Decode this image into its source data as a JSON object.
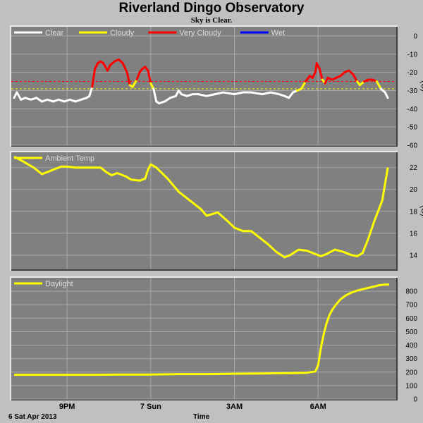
{
  "title": "Riverland Dingo Observatory",
  "subtitle": "Sky is Clear.",
  "date_label": "6 Sat Apr 2013",
  "xlabel": "Time",
  "colors": {
    "background": "#c0c0c0",
    "plot": "#808080",
    "grid": "#a8a8a8",
    "clear": "#ffffff",
    "cloudy": "#ffff00",
    "very_cloudy": "#ff0000",
    "wet": "#0000ff",
    "threshold_red": "#ff0000",
    "threshold_yellow": "#ffff00"
  },
  "chart_data": [
    {
      "type": "line",
      "title": "",
      "ylabel": "(C)",
      "ylim": [
        -60,
        5
      ],
      "yticks": [
        0,
        -10,
        -20,
        -30,
        -40,
        -50,
        -60
      ],
      "xlim": [
        19.0,
        32.8
      ],
      "xticks": [
        {
          "x": 21,
          "label": "9PM"
        },
        {
          "x": 24,
          "label": "7 Sun"
        },
        {
          "x": 27,
          "label": "3AM"
        },
        {
          "x": 30,
          "label": "6AM"
        }
      ],
      "legend": [
        "Clear",
        "Cloudy",
        "Very Cloudy",
        "Wet"
      ],
      "thresholds": [
        {
          "y": -25,
          "color": "very_cloudy"
        },
        {
          "y": -29,
          "color": "cloudy"
        }
      ],
      "series": [
        {
          "name": "Sky Temperature",
          "x": [
            19.1,
            19.2,
            19.35,
            19.5,
            19.7,
            19.9,
            20.1,
            20.3,
            20.5,
            20.7,
            20.9,
            21.1,
            21.3,
            21.5,
            21.7,
            21.8,
            21.9,
            22.0,
            22.1,
            22.2,
            22.3,
            22.45,
            22.55,
            22.7,
            22.85,
            23.0,
            23.15,
            23.25,
            23.35,
            23.5,
            23.6,
            23.7,
            23.8,
            23.9,
            24.0,
            24.1,
            24.2,
            24.3,
            24.5,
            24.7,
            24.9,
            25.0,
            25.1,
            25.3,
            25.5,
            25.7,
            26.0,
            26.3,
            26.6,
            27.0,
            27.3,
            27.6,
            28.0,
            28.3,
            28.6,
            28.8,
            28.95,
            29.1,
            29.25,
            29.4,
            29.55,
            29.7,
            29.8,
            29.9,
            29.95,
            30.05,
            30.15,
            30.25,
            30.35,
            30.5,
            30.65,
            30.8,
            30.95,
            31.1,
            31.25,
            31.4,
            31.5,
            31.65,
            31.8,
            31.95,
            32.1,
            32.25,
            32.4,
            32.5
          ],
          "y": [
            -34,
            -31,
            -35,
            -34,
            -35,
            -34,
            -36,
            -35,
            -36,
            -35,
            -36,
            -35,
            -36,
            -35,
            -34,
            -33,
            -28,
            -18,
            -15,
            -14,
            -15,
            -19,
            -16,
            -14,
            -13,
            -15,
            -20,
            -27,
            -28,
            -24,
            -20,
            -18,
            -17,
            -19,
            -26,
            -29,
            -36,
            -37,
            -36,
            -34,
            -33,
            -30,
            -32,
            -33,
            -32,
            -32,
            -33,
            -32,
            -31,
            -32,
            -31,
            -31,
            -32,
            -31,
            -32,
            -33,
            -34,
            -31,
            -30,
            -29,
            -25,
            -22,
            -23,
            -20,
            -15,
            -18,
            -24,
            -26,
            -23,
            -24,
            -23,
            -22,
            -20,
            -19,
            -21,
            -25,
            -27,
            -25,
            -24,
            -24,
            -25,
            -29,
            -31,
            -34
          ]
        }
      ]
    },
    {
      "type": "line",
      "title": "",
      "ylabel": "(C)",
      "ylim": [
        12.7,
        23.4
      ],
      "yticks": [
        14,
        16,
        18,
        20,
        22
      ],
      "xlim": [
        19.0,
        32.8
      ],
      "xticks": [
        {
          "x": 21,
          "label": "9PM"
        },
        {
          "x": 24,
          "label": "7 Sun"
        },
        {
          "x": 27,
          "label": "3AM"
        },
        {
          "x": 30,
          "label": "6AM"
        }
      ],
      "legend": [
        "Ambient Temp"
      ],
      "series": [
        {
          "name": "Ambient Temp",
          "x": [
            19.1,
            19.4,
            19.8,
            20.1,
            20.5,
            20.8,
            21.0,
            21.3,
            21.8,
            22.2,
            22.4,
            22.6,
            22.8,
            23.1,
            23.3,
            23.6,
            23.8,
            23.9,
            24.0,
            24.2,
            24.6,
            25.0,
            25.4,
            25.8,
            26.0,
            26.4,
            26.8,
            27.0,
            27.3,
            27.6,
            28.0,
            28.2,
            28.5,
            28.8,
            29.0,
            29.3,
            29.6,
            29.9,
            30.1,
            30.3,
            30.6,
            30.9,
            31.2,
            31.4,
            31.6,
            31.8,
            32.0,
            32.3,
            32.5
          ],
          "y": [
            23.0,
            22.6,
            22.0,
            21.4,
            21.8,
            22.1,
            22.1,
            22.0,
            22.0,
            22.0,
            21.6,
            21.3,
            21.5,
            21.2,
            20.9,
            20.8,
            21.0,
            21.8,
            22.3,
            22.0,
            21.0,
            19.8,
            19.0,
            18.2,
            17.6,
            17.9,
            17.0,
            16.5,
            16.2,
            16.2,
            15.4,
            15.0,
            14.3,
            13.8,
            14.0,
            14.5,
            14.4,
            14.1,
            13.9,
            14.1,
            14.5,
            14.3,
            14.0,
            13.9,
            14.2,
            15.5,
            17.0,
            19.0,
            22.0
          ]
        }
      ]
    },
    {
      "type": "line",
      "title": "",
      "ylabel": "",
      "ylim": [
        0,
        900
      ],
      "yticks": [
        0,
        100,
        200,
        300,
        400,
        500,
        600,
        700,
        800
      ],
      "xlim": [
        19.0,
        32.8
      ],
      "xticks": [
        {
          "x": 21,
          "label": "9PM"
        },
        {
          "x": 24,
          "label": "7 Sun"
        },
        {
          "x": 27,
          "label": "3AM"
        },
        {
          "x": 30,
          "label": "6AM"
        }
      ],
      "legend": [
        "Daylight"
      ],
      "series": [
        {
          "name": "Daylight",
          "x": [
            19.1,
            20.0,
            21.0,
            22.0,
            23.0,
            24.0,
            25.0,
            26.0,
            27.0,
            28.0,
            29.0,
            29.6,
            29.9,
            30.0,
            30.1,
            30.2,
            30.3,
            30.4,
            30.5,
            30.6,
            30.8,
            31.0,
            31.2,
            31.4,
            31.6,
            31.8,
            32.0,
            32.2,
            32.4,
            32.55
          ],
          "y": [
            180,
            180,
            180,
            180,
            182,
            182,
            185,
            185,
            188,
            190,
            192,
            195,
            205,
            250,
            380,
            480,
            560,
            620,
            660,
            690,
            740,
            770,
            790,
            805,
            815,
            825,
            835,
            845,
            850,
            850
          ]
        }
      ]
    }
  ]
}
